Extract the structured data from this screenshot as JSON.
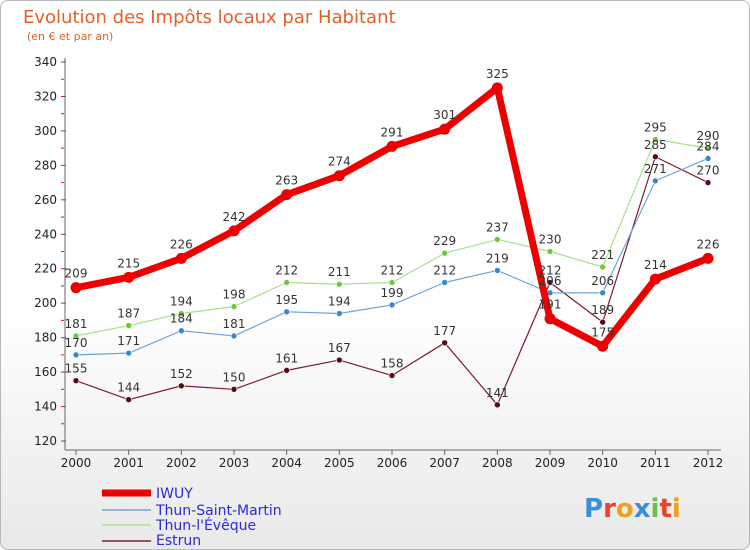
{
  "chart_data": {
    "type": "line",
    "title": "Evolution des Impôts locaux par Habitant",
    "subtitle": "(en € et par an)",
    "xlabel": "",
    "ylabel": "",
    "x": [
      "2000",
      "2001",
      "2002",
      "2003",
      "2004",
      "2005",
      "2006",
      "2007",
      "2008",
      "2009",
      "2010",
      "2011",
      "2012"
    ],
    "ylim": [
      120,
      340
    ],
    "yticks": [
      120,
      140,
      160,
      180,
      200,
      220,
      240,
      260,
      280,
      300,
      320,
      340
    ],
    "legend_position": "bottom-left",
    "series": [
      {
        "name": "Estrun",
        "color": "#7a1e2a",
        "marker": "#5a0a14",
        "width": 1.2,
        "values": [
          155,
          144,
          152,
          150,
          161,
          167,
          158,
          177,
          141,
          212,
          189,
          285,
          270
        ],
        "labels": [
          155,
          144,
          152,
          150,
          161,
          167,
          158,
          177,
          141,
          212,
          189,
          285,
          270
        ]
      },
      {
        "name": "Thun-l'Évêque",
        "color": "#a8e08c",
        "marker": "#6ec83a",
        "width": 1.2,
        "values": [
          181,
          187,
          194,
          198,
          212,
          211,
          212,
          229,
          237,
          230,
          221,
          295,
          290
        ],
        "labels": [
          181,
          187,
          194,
          198,
          212,
          211,
          212,
          229,
          237,
          230,
          221,
          295,
          290
        ]
      },
      {
        "name": "Thun-Saint-Martin",
        "color": "#6fa4d8",
        "marker": "#3a86d0",
        "width": 1.2,
        "values": [
          170,
          171,
          184,
          181,
          195,
          194,
          199,
          212,
          219,
          206,
          206,
          271,
          284
        ],
        "labels": [
          170,
          171,
          184,
          181,
          195,
          194,
          199,
          212,
          219,
          206,
          206,
          271,
          284
        ]
      },
      {
        "name": "IWUY",
        "color": "#ee0000",
        "marker": "#ee0000",
        "width": 7,
        "values": [
          209,
          215,
          226,
          242,
          263,
          274,
          291,
          301,
          325,
          191,
          175,
          214,
          226
        ],
        "labels": [
          209,
          215,
          226,
          242,
          263,
          274,
          291,
          301,
          325,
          191,
          175,
          214,
          226
        ]
      }
    ]
  },
  "legend": {
    "items": [
      "IWUY",
      "Thun-Saint-Martin",
      "Thun-l'Évêque",
      "Estrun"
    ]
  },
  "logo": {
    "text": "Proxiti"
  }
}
